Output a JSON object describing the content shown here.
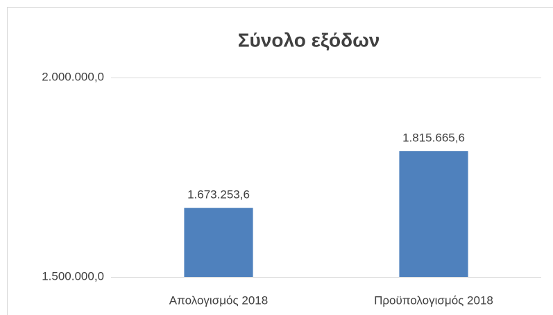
{
  "chart_data": {
    "type": "bar",
    "title": "Σύνολο εξόδων",
    "categories": [
      "Απολογισμός 2018",
      "Προϋπολογισμός 2018"
    ],
    "values": [
      1673253.6,
      1815665.6
    ],
    "value_labels": [
      "1.673.253,6",
      "1.815.665,6"
    ],
    "color": "#4f81bd",
    "ylim": [
      1500000,
      2000000
    ],
    "yticks": [
      {
        "value": 1500000,
        "label": "1.500.000,0"
      },
      {
        "value": 2000000,
        "label": "2.000.000,0"
      }
    ],
    "grid": true
  }
}
